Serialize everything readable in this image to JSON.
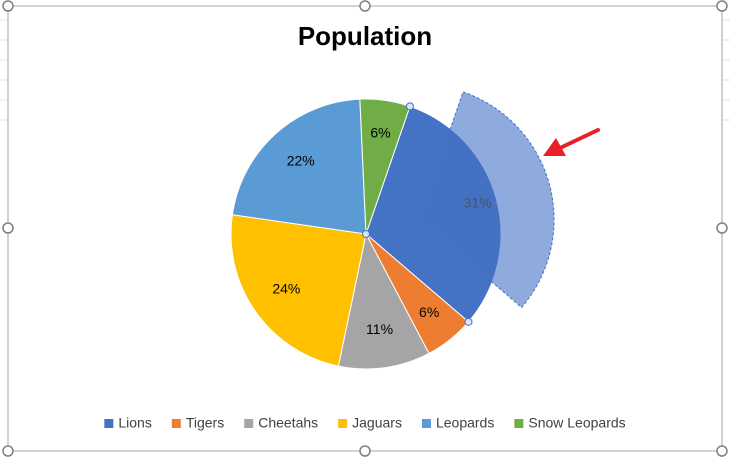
{
  "chart_data": {
    "type": "pie",
    "title": "Population",
    "categories": [
      "Lions",
      "Tigers",
      "Cheetahs",
      "Jaguars",
      "Leopards",
      "Snow Leopards"
    ],
    "values": [
      31,
      6,
      11,
      24,
      22,
      6
    ],
    "value_labels": [
      "31%",
      "6%",
      "11%",
      "24%",
      "22%",
      "6%"
    ],
    "colors": [
      "#4472c4",
      "#ed7d31",
      "#a5a5a5",
      "#ffc000",
      "#5b9bd5",
      "#70ad47"
    ],
    "legend": "bottom"
  }
}
